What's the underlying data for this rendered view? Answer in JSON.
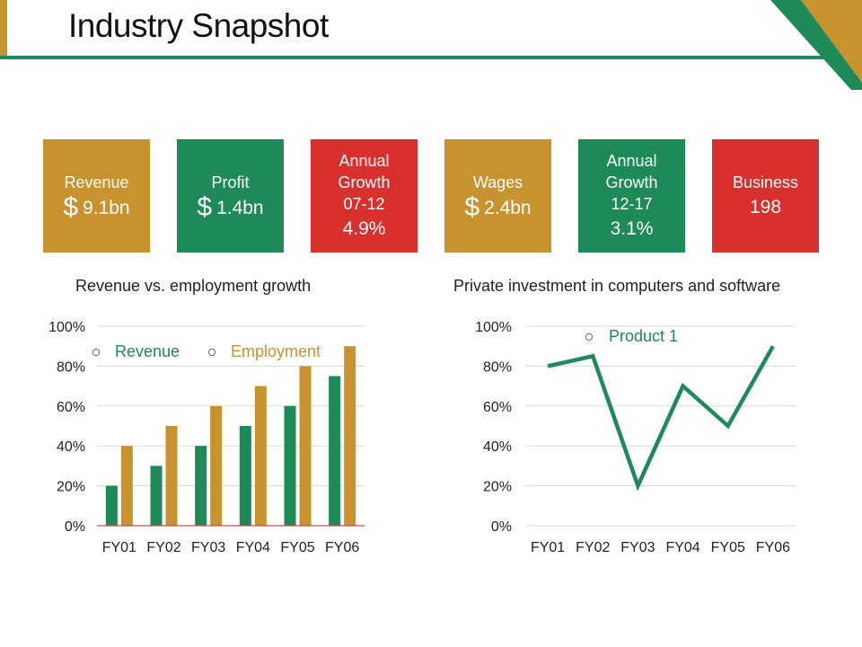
{
  "page": {
    "title": "Industry Snapshot"
  },
  "colors": {
    "gold": "#C8922E",
    "green": "#1E8A57",
    "red": "#D9302E",
    "grid": "#D9D9D9",
    "axis": "#C0504D"
  },
  "cards": [
    {
      "label": "Revenue",
      "prefix": "$",
      "value": "9.1bn",
      "color": "gold"
    },
    {
      "label": "Profit",
      "prefix": "$",
      "value": "1.4bn",
      "color": "green"
    },
    {
      "label": "Annual Growth 07-12",
      "prefix": "",
      "value": "4.9%",
      "color": "red"
    },
    {
      "label": "Wages",
      "prefix": "$",
      "value": "2.4bn",
      "color": "gold"
    },
    {
      "label": "Annual Growth 12-17",
      "prefix": "",
      "value": "3.1%",
      "color": "green"
    },
    {
      "label": "Business",
      "prefix": "",
      "value": "198",
      "color": "red"
    }
  ],
  "chart_data": [
    {
      "type": "bar",
      "title": "Revenue vs. employment growth",
      "categories": [
        "FY01",
        "FY02",
        "FY03",
        "FY04",
        "FY05",
        "FY06"
      ],
      "series": [
        {
          "name": "Revenue",
          "values": [
            20,
            30,
            40,
            50,
            60,
            75
          ],
          "color": "#1E8A57"
        },
        {
          "name": "Employment",
          "values": [
            40,
            50,
            60,
            70,
            80,
            90
          ],
          "color": "#C8922E"
        }
      ],
      "ylim": [
        0,
        100
      ],
      "yticks": [
        "0%",
        "20%",
        "40%",
        "60%",
        "80%",
        "100%"
      ],
      "xlabel": "",
      "ylabel": "",
      "legend": "top"
    },
    {
      "type": "line",
      "title": "Private investment in computers and software",
      "categories": [
        "FY01",
        "FY02",
        "FY03",
        "FY04",
        "FY05",
        "FY06"
      ],
      "series": [
        {
          "name": "Product 1",
          "values": [
            80,
            85,
            20,
            70,
            50,
            90
          ],
          "color": "#1E8A57"
        }
      ],
      "ylim": [
        0,
        100
      ],
      "yticks": [
        "0%",
        "20%",
        "40%",
        "60%",
        "80%",
        "100%"
      ],
      "xlabel": "",
      "ylabel": "",
      "legend": "top"
    }
  ]
}
